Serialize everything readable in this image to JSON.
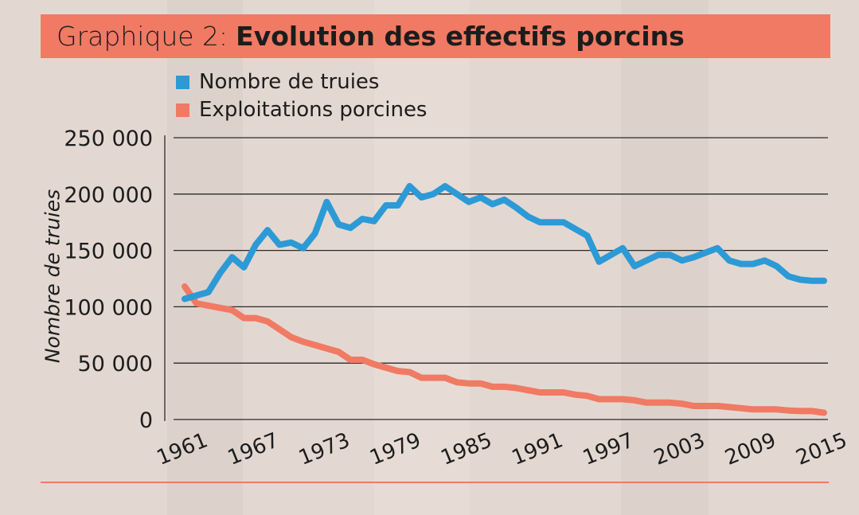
{
  "header": {
    "title_prefix": "Graphique 2:",
    "title_main": "Evolution des effectifs porcins"
  },
  "colors": {
    "title_bar": "#f07a63",
    "truies": "#2c9ad6",
    "exploitations": "#f07a63",
    "background": "#e3d8d1"
  },
  "chart_data": {
    "type": "line",
    "title": "Evolution des effectifs porcins",
    "ylabel": "Nombre de truies",
    "xlabel": "",
    "ylim": [
      0,
      250000
    ],
    "xlim": [
      1961,
      2015
    ],
    "y_ticks": [
      0,
      50000,
      100000,
      150000,
      200000,
      250000
    ],
    "y_tick_labels": [
      "0",
      "50 000",
      "100 000",
      "150 000",
      "200 000",
      "250 000"
    ],
    "x_ticks": [
      1961,
      1967,
      1973,
      1979,
      1985,
      1991,
      1997,
      2003,
      2009,
      2015
    ],
    "x_tick_labels": [
      "1961",
      "1967",
      "1973",
      "1979",
      "1985",
      "1991",
      "1997",
      "2003",
      "2009",
      "2015"
    ],
    "grid": "horizontal",
    "legend_position": "top-left",
    "x": [
      1961,
      1962,
      1963,
      1964,
      1965,
      1966,
      1967,
      1968,
      1969,
      1970,
      1971,
      1972,
      1973,
      1974,
      1975,
      1976,
      1977,
      1978,
      1979,
      1980,
      1981,
      1982,
      1983,
      1984,
      1985,
      1986,
      1987,
      1988,
      1989,
      1990,
      1991,
      1992,
      1993,
      1994,
      1995,
      1996,
      1997,
      1998,
      1999,
      2000,
      2001,
      2002,
      2003,
      2004,
      2005,
      2006,
      2007,
      2008,
      2009,
      2010,
      2011,
      2012,
      2013,
      2014,
      2015
    ],
    "series": [
      {
        "name": "Nombre de truies",
        "color": "#2c9ad6",
        "values": [
          107000,
          110000,
          113000,
          130000,
          144000,
          135000,
          155000,
          168000,
          155000,
          157000,
          152000,
          165000,
          193000,
          173000,
          170000,
          178000,
          176000,
          190000,
          190000,
          207000,
          197000,
          200000,
          207000,
          200000,
          193000,
          197000,
          191000,
          195000,
          188000,
          180000,
          175000,
          175000,
          175000,
          169000,
          163000,
          140000,
          146000,
          152000,
          136000,
          141000,
          146000,
          146000,
          141000,
          144000,
          148000,
          152000,
          141000,
          138000,
          138000,
          141000,
          136000,
          127000,
          124000,
          123000,
          123000
        ]
      },
      {
        "name": "Exploitations porcines",
        "color": "#f07a63",
        "values": [
          118000,
          103000,
          101000,
          99000,
          97000,
          90000,
          90000,
          87000,
          80000,
          73000,
          69000,
          66000,
          63000,
          60000,
          53000,
          53000,
          49000,
          46000,
          43000,
          42000,
          37000,
          37000,
          37000,
          33000,
          32000,
          32000,
          29000,
          29000,
          28000,
          26000,
          24000,
          24000,
          24000,
          22000,
          21000,
          18000,
          18000,
          18000,
          17000,
          15000,
          15000,
          15000,
          14000,
          12000,
          12000,
          12000,
          11000,
          10000,
          9000,
          9000,
          9000,
          8000,
          7500,
          7500,
          6000
        ]
      }
    ]
  }
}
